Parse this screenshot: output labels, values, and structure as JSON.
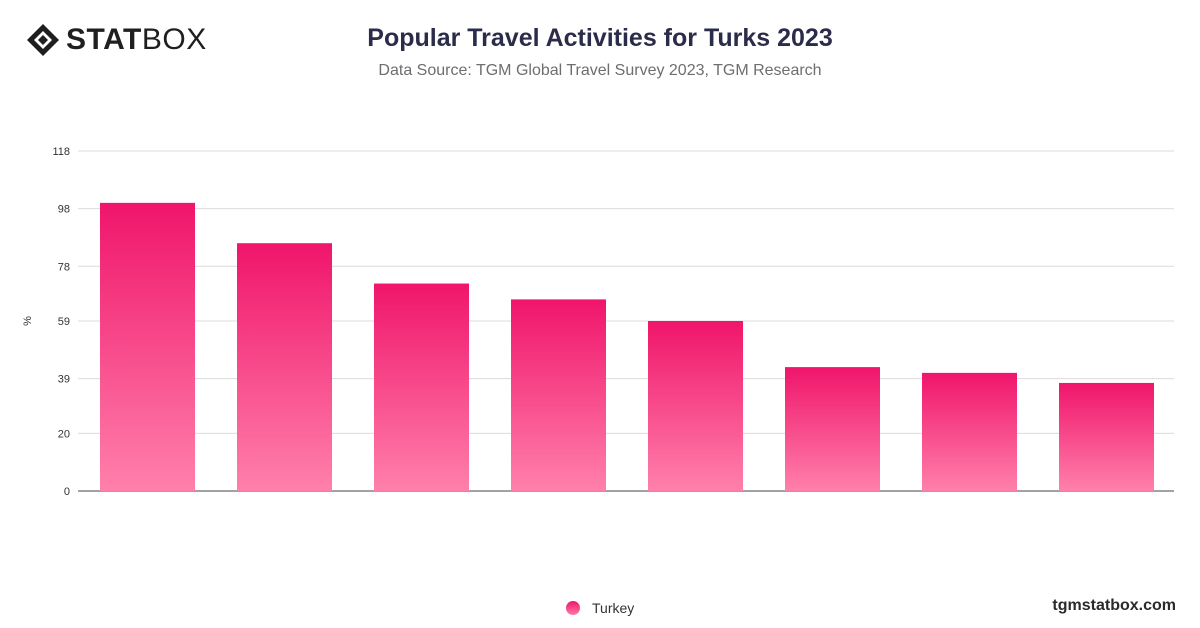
{
  "brand": {
    "logo_bold": "STAT",
    "logo_light": "BOX",
    "site": "tgmstatbox.com"
  },
  "colors": {
    "bar_top": "#f0156b",
    "bar_bottom": "#ff80ab",
    "title": "#2b2c4a"
  },
  "chart_data": {
    "type": "bar",
    "title": "Popular Travel Activities for Turks 2023",
    "subtitle": "Data Source: TGM Global Travel Survey 2023, TGM Research",
    "xlabel": "",
    "ylabel": "%",
    "ylim": [
      0,
      118
    ],
    "yticks": [
      "0",
      "20",
      "39",
      "59",
      "78",
      "98",
      "118"
    ],
    "grid": true,
    "legend_position": "bottom",
    "categories": [
      "",
      "",
      "",
      "",
      "",
      "",
      "",
      ""
    ],
    "series": [
      {
        "name": "Turkey",
        "values": [
          100,
          86,
          72,
          66.5,
          59,
          43,
          41,
          37.5
        ]
      }
    ]
  }
}
